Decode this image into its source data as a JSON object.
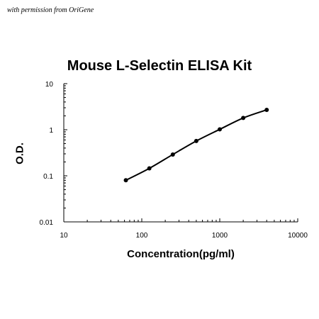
{
  "credit_text": "with permission from OriGene",
  "chart_data": {
    "type": "line",
    "title": "Mouse L-Selectin ELISA Kit",
    "xlabel": "Concentration(pg/ml)",
    "ylabel": "O.D.",
    "x_scale": "log",
    "y_scale": "log",
    "xlim": [
      10,
      10000
    ],
    "ylim": [
      0.01,
      10
    ],
    "x_ticks": [
      "10",
      "100",
      "1000",
      "10000"
    ],
    "y_ticks": [
      "0.01",
      "0.1",
      "1",
      "10"
    ],
    "grid": false,
    "legend": "none",
    "series": [
      {
        "x": [
          62.5,
          125,
          250,
          500,
          1000,
          2000,
          4000
        ],
        "y": [
          0.08,
          0.145,
          0.29,
          0.57,
          1.02,
          1.8,
          2.7
        ]
      }
    ],
    "color": "#000000"
  }
}
